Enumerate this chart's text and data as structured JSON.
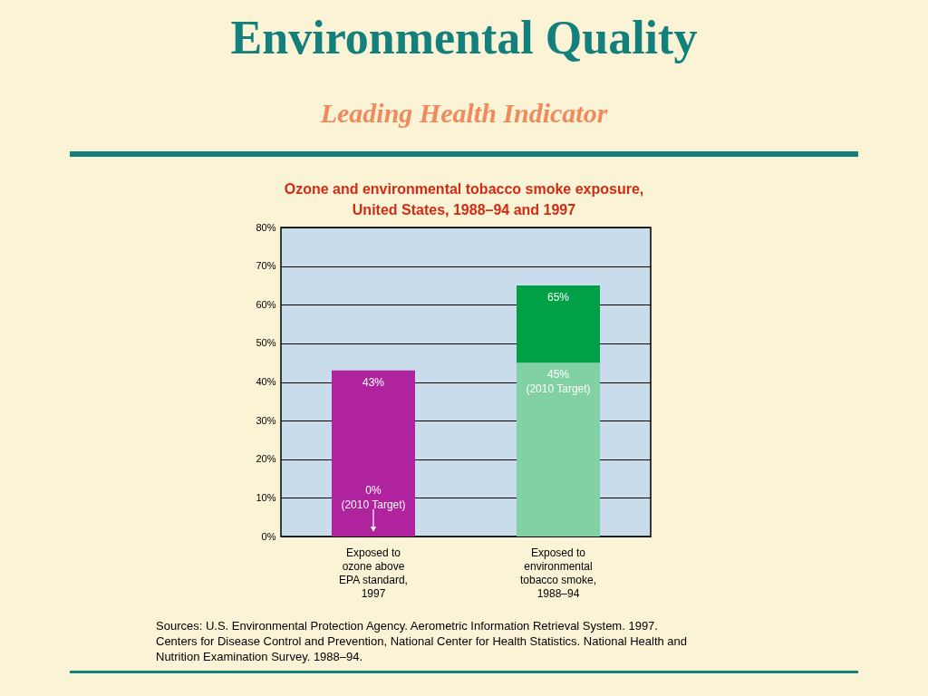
{
  "chart_data": {
    "type": "bar",
    "title": "Environmental Quality",
    "subtitle": "Leading Health Indicator",
    "categories": [
      "Exposed to ozone above EPA standard, 1997",
      "Exposed to environmental tobacco smoke, 1988–94"
    ],
    "stacked": true,
    "series": [
      {
        "colors": [
          "#b0239f",
          "#82d1a4"
        ],
        "values": [
          43,
          45
        ]
      },
      {
        "color": "#00a046",
        "values": [
          null,
          20
        ]
      }
    ],
    "ylim": [
      0,
      80
    ],
    "yticks": [
      {
        "value": 0,
        "label": "0%"
      },
      {
        "value": 10,
        "label": "10%"
      },
      {
        "value": 20,
        "label": "20%"
      },
      {
        "value": 30,
        "label": "30%"
      },
      {
        "value": 40,
        "label": "40%"
      },
      {
        "value": 50,
        "label": "50%"
      },
      {
        "value": 60,
        "label": "60%"
      },
      {
        "value": 70,
        "label": "70%"
      },
      {
        "value": 80,
        "label": "80%"
      }
    ],
    "grid": "y",
    "annotations": [
      "Ozone and environmental tobacco smoke exposure,\nUnited States, 1988–94 and 1997",
      {
        "text": "43%",
        "x": "Exposed to ozone above EPA standard, 1997",
        "y": 43
      },
      {
        "text": "0%\n(2010 Target)",
        "x": "Exposed to ozone above EPA standard, 1997",
        "y": 0
      },
      {
        "text": "65%",
        "x": "Exposed to environmental tobacco smoke, 1988–94",
        "y": 65
      },
      {
        "text": "45%\n(2010 Target)",
        "x": "Exposed to environmental tobacco smoke, 1988–94",
        "y": 45
      },
      "Sources: U.S. Environmental Protection Agency. Aerometric Information Retrieval System. 1997.\nCenters for Disease Control and Prevention, National Center for Health Statistics. National Health and\nNutrition Examination Survey. 1988–94."
    ]
  }
}
